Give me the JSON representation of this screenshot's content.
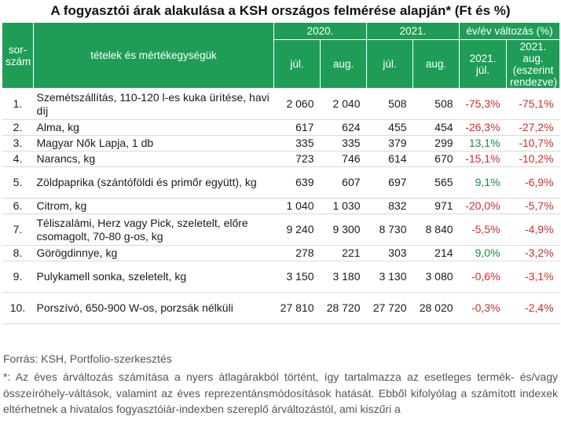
{
  "title": "A fogyasztói árak alakulása a KSH országos felmérése alapján* (Ft és %)",
  "headers": {
    "sorszam": "sor-szám",
    "tetelek": "tételek és mértékegységük",
    "y2020": "2020.",
    "y2021": "2021.",
    "change": "év/év változás (%)",
    "jul": "júl.",
    "aug": "aug.",
    "ch_jul": "2021. júl.",
    "ch_aug": "2021. aug. (eszerint rendezve)"
  },
  "rows": [
    {
      "idx": "1.",
      "name": "Szemétszállítás, 110-120 l-es kuka ürítése, havi díj",
      "jul2020": "2 060",
      "aug2020": "2 040",
      "jul2021": "508",
      "aug2021": "508",
      "chg_jul": "-75,3%",
      "chg_aug": "-75,1%"
    },
    {
      "idx": "2.",
      "name": "Alma, kg",
      "jul2020": "617",
      "aug2020": "624",
      "jul2021": "455",
      "aug2021": "454",
      "chg_jul": "-26,3%",
      "chg_aug": "-27,2%"
    },
    {
      "idx": "3.",
      "name": "Magyar Nők Lapja, 1 db",
      "jul2020": "335",
      "aug2020": "335",
      "jul2021": "379",
      "aug2021": "299",
      "chg_jul": "13,1%",
      "chg_aug": "-10,7%"
    },
    {
      "idx": "4.",
      "name": "Narancs, kg",
      "jul2020": "723",
      "aug2020": "746",
      "jul2021": "614",
      "aug2021": "670",
      "chg_jul": "-15,1%",
      "chg_aug": "-10,2%"
    },
    {
      "idx": "5.",
      "name": "Zöldpaprika (szántóföldi és primőr együtt), kg",
      "jul2020": "639",
      "aug2020": "607",
      "jul2021": "697",
      "aug2021": "565",
      "chg_jul": "9,1%",
      "chg_aug": "-6,9%"
    },
    {
      "idx": "6.",
      "name": "Citrom, kg",
      "jul2020": "1 040",
      "aug2020": "1 030",
      "jul2021": "832",
      "aug2021": "971",
      "chg_jul": "-20,0%",
      "chg_aug": "-5,7%"
    },
    {
      "idx": "7.",
      "name": "Téliszalámi, Herz vagy Pick, szeletelt, előre csomagolt, 70-80 g-os, kg",
      "jul2020": "9 240",
      "aug2020": "9 300",
      "jul2021": "8 730",
      "aug2021": "8 840",
      "chg_jul": "-5,5%",
      "chg_aug": "-4,9%"
    },
    {
      "idx": "8.",
      "name": "Görögdinnye, kg",
      "jul2020": "278",
      "aug2020": "221",
      "jul2021": "303",
      "aug2021": "214",
      "chg_jul": "9,0%",
      "chg_aug": "-3,2%"
    },
    {
      "idx": "9.",
      "name": "Pulykamell sonka, szeletelt, kg",
      "jul2020": "3 150",
      "aug2020": "3 180",
      "jul2021": "3 130",
      "aug2021": "3 080",
      "chg_jul": "-0,6%",
      "chg_aug": "-3,1%"
    },
    {
      "idx": "10.",
      "name": "Porszívó, 650-900 W-os, porzsák nélküli",
      "jul2020": "27 810",
      "aug2020": "28 720",
      "jul2021": "27 720",
      "aug2021": "28 020",
      "chg_jul": "-0,3%",
      "chg_aug": "-2,4%"
    }
  ],
  "source": "Forrás: KSH, Portfolio-szerkesztés",
  "footnote": "*: Az éves árváltozás számítása a nyers átlagárakból történt, így tartalmazza az esetleges termék- és/vagy összeíróhely-váltások, valamint az éves reprezentánsmódosítások hatását. Ebből kifolyólag a számított indexek eltérhetnek a hivatalos fogyasztóiár-indexben szereplő árváltozástól, ami kiszűri a",
  "colors": {
    "header_bg": "#1f9d57",
    "positive": "#1e8a3e",
    "negative": "#d22c2c"
  }
}
